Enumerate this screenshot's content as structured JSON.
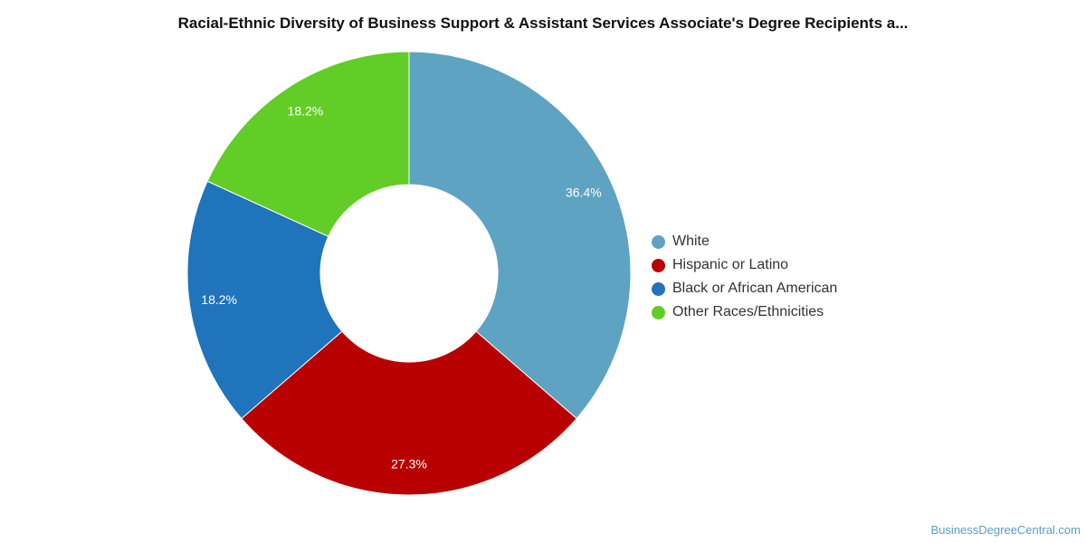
{
  "chart_data": {
    "type": "pie",
    "title": "Racial-Ethnic Diversity of Business Support & Assistant Services Associate's Degree Recipients a...",
    "categories": [
      "White",
      "Hispanic or Latino",
      "Black or African American",
      "Other Races/Ethnicities"
    ],
    "values": [
      36.4,
      27.3,
      18.2,
      18.2
    ],
    "data_labels": [
      "36.4%",
      "27.3%",
      "18.2%",
      "18.2%"
    ],
    "colors": [
      "#5ea3c1",
      "#b80000",
      "#1f74bb",
      "#62cd26"
    ],
    "donut": true,
    "legend_position": "right"
  },
  "watermark": "BusinessDegreeCentral.com"
}
